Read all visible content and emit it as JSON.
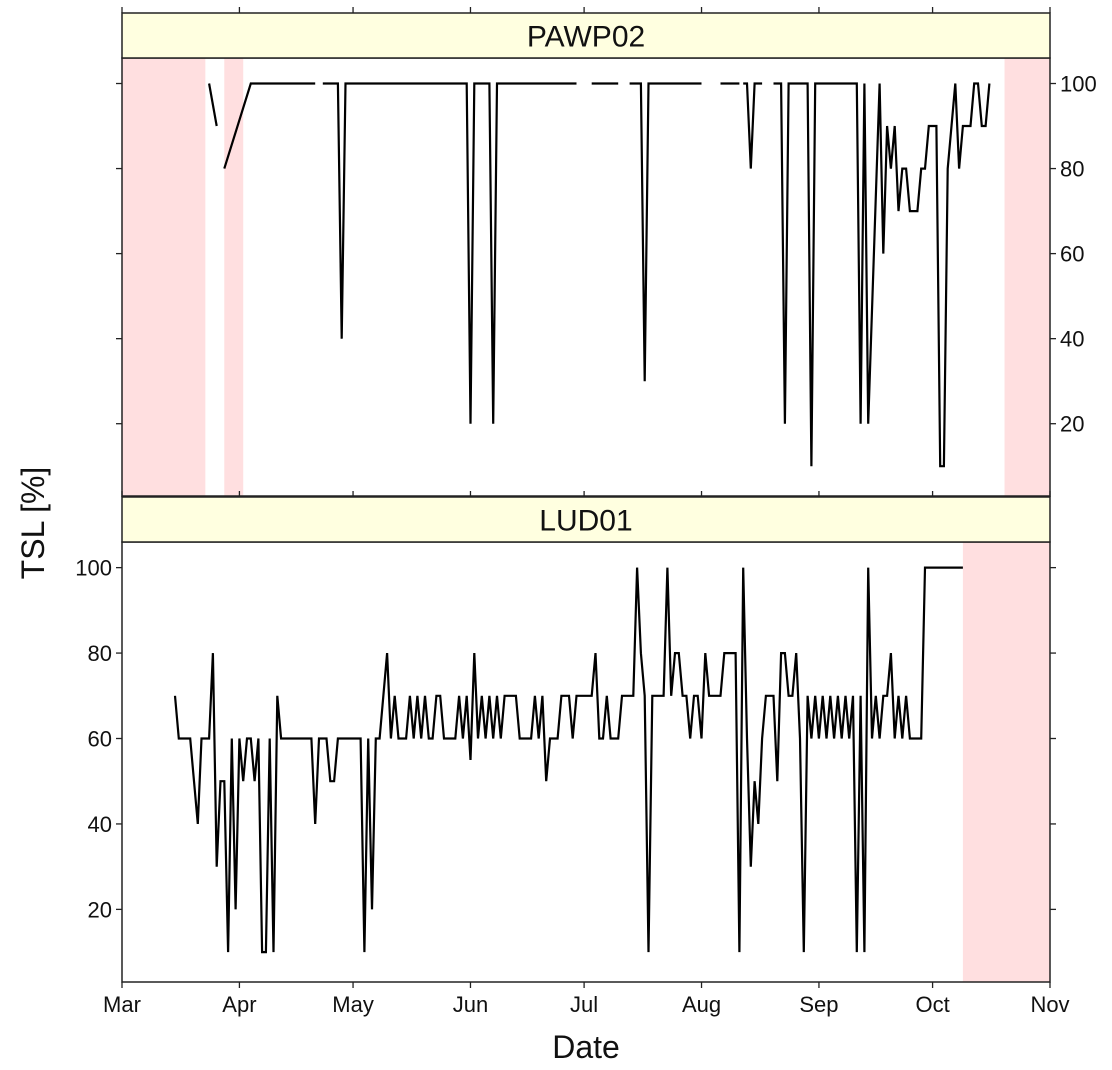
{
  "chart_data": {
    "type": "line",
    "xlabel": "Date",
    "ylabel": "TSL [%]",
    "x_axis": {
      "type": "date",
      "range": [
        "2016-03-01",
        "2016-11-01"
      ],
      "ticks": [
        {
          "date": "2016-03-01",
          "label": "Mar"
        },
        {
          "date": "2016-04-01",
          "label": "Apr"
        },
        {
          "date": "2016-05-01",
          "label": "May"
        },
        {
          "date": "2016-06-01",
          "label": "Jun"
        },
        {
          "date": "2016-07-01",
          "label": "Jul"
        },
        {
          "date": "2016-08-01",
          "label": "Aug"
        },
        {
          "date": "2016-09-01",
          "label": "Sep"
        },
        {
          "date": "2016-10-01",
          "label": "Oct"
        },
        {
          "date": "2016-11-01",
          "label": "Nov"
        }
      ]
    },
    "y_axis": {
      "range": [
        3,
        106
      ],
      "ticks": [
        20,
        40,
        60,
        80,
        100
      ]
    },
    "grid": false,
    "colors": {
      "line": "#000000",
      "shading": "#ffdfe0",
      "strip": "#ffffe0"
    },
    "panels": [
      {
        "label": "PAWP02",
        "y_axis_side": "right",
        "shaded_periods": [
          [
            "2016-03-01",
            "2016-03-23"
          ],
          [
            "2016-03-28",
            "2016-04-02"
          ],
          [
            "2016-10-20",
            "2016-11-01"
          ]
        ],
        "segments": [
          [
            [
              "2016-03-24",
              100
            ],
            [
              "2016-03-26",
              90
            ]
          ],
          [
            [
              "2016-03-28",
              80
            ],
            [
              "2016-04-04",
              100
            ],
            [
              "2016-04-21",
              100
            ]
          ],
          [
            [
              "2016-04-23",
              100
            ],
            [
              "2016-04-27",
              100
            ],
            [
              "2016-04-28",
              40
            ],
            [
              "2016-04-29",
              100
            ],
            [
              "2016-05-31",
              100
            ],
            [
              "2016-06-01",
              20
            ],
            [
              "2016-06-02",
              100
            ],
            [
              "2016-06-06",
              100
            ],
            [
              "2016-06-07",
              20
            ],
            [
              "2016-06-08",
              100
            ],
            [
              "2016-06-29",
              100
            ]
          ],
          [
            [
              "2016-07-03",
              100
            ],
            [
              "2016-07-10",
              100
            ]
          ],
          [
            [
              "2016-07-13",
              100
            ],
            [
              "2016-07-16",
              100
            ],
            [
              "2016-07-17",
              30
            ],
            [
              "2016-07-18",
              100
            ],
            [
              "2016-08-01",
              100
            ]
          ],
          [
            [
              "2016-08-06",
              100
            ],
            [
              "2016-08-11",
              100
            ]
          ],
          [
            [
              "2016-08-12",
              100
            ],
            [
              "2016-08-13",
              100
            ],
            [
              "2016-08-14",
              80
            ],
            [
              "2016-08-15",
              100
            ],
            [
              "2016-08-17",
              100
            ]
          ],
          [
            [
              "2016-08-20",
              100
            ],
            [
              "2016-08-22",
              100
            ],
            [
              "2016-08-23",
              20
            ],
            [
              "2016-08-24",
              100
            ],
            [
              "2016-08-29",
              100
            ],
            [
              "2016-08-30",
              10
            ],
            [
              "2016-08-31",
              100
            ],
            [
              "2016-09-11",
              100
            ],
            [
              "2016-09-12",
              20
            ],
            [
              "2016-09-13",
              100
            ],
            [
              "2016-09-14",
              20
            ],
            [
              "2016-09-17",
              100
            ],
            [
              "2016-09-18",
              60
            ],
            [
              "2016-09-19",
              90
            ],
            [
              "2016-09-20",
              80
            ],
            [
              "2016-09-21",
              90
            ],
            [
              "2016-09-22",
              70
            ],
            [
              "2016-09-23",
              80
            ],
            [
              "2016-09-24",
              80
            ],
            [
              "2016-09-25",
              70
            ],
            [
              "2016-09-27",
              70
            ],
            [
              "2016-09-28",
              80
            ],
            [
              "2016-09-29",
              80
            ],
            [
              "2016-09-30",
              90
            ],
            [
              "2016-10-02",
              90
            ],
            [
              "2016-10-03",
              10
            ],
            [
              "2016-10-04",
              10
            ],
            [
              "2016-10-05",
              80
            ],
            [
              "2016-10-07",
              100
            ],
            [
              "2016-10-08",
              80
            ],
            [
              "2016-10-09",
              90
            ],
            [
              "2016-10-11",
              90
            ],
            [
              "2016-10-12",
              100
            ],
            [
              "2016-10-13",
              100
            ],
            [
              "2016-10-14",
              90
            ],
            [
              "2016-10-15",
              90
            ],
            [
              "2016-10-16",
              100
            ]
          ]
        ]
      },
      {
        "label": "LUD01",
        "y_axis_side": "left",
        "shaded_periods": [
          [
            "2016-10-09",
            "2016-11-01"
          ]
        ],
        "segments": [
          [
            [
              "2016-03-15",
              70
            ],
            [
              "2016-03-16",
              60
            ],
            [
              "2016-03-19",
              60
            ],
            [
              "2016-03-21",
              40
            ],
            [
              "2016-03-22",
              60
            ],
            [
              "2016-03-24",
              60
            ],
            [
              "2016-03-25",
              80
            ],
            [
              "2016-03-26",
              30
            ],
            [
              "2016-03-27",
              50
            ],
            [
              "2016-03-28",
              50
            ],
            [
              "2016-03-29",
              10
            ],
            [
              "2016-03-30",
              60
            ],
            [
              "2016-03-31",
              20
            ],
            [
              "2016-04-01",
              60
            ],
            [
              "2016-04-02",
              50
            ],
            [
              "2016-04-03",
              60
            ],
            [
              "2016-04-04",
              60
            ],
            [
              "2016-04-05",
              50
            ],
            [
              "2016-04-06",
              60
            ],
            [
              "2016-04-07",
              10
            ],
            [
              "2016-04-08",
              10
            ],
            [
              "2016-04-09",
              60
            ],
            [
              "2016-04-10",
              10
            ],
            [
              "2016-04-11",
              70
            ],
            [
              "2016-04-12",
              60
            ],
            [
              "2016-04-20",
              60
            ],
            [
              "2016-04-21",
              40
            ],
            [
              "2016-04-22",
              60
            ],
            [
              "2016-04-24",
              60
            ],
            [
              "2016-04-25",
              50
            ],
            [
              "2016-04-26",
              50
            ],
            [
              "2016-04-27",
              60
            ],
            [
              "2016-05-03",
              60
            ],
            [
              "2016-05-04",
              10
            ],
            [
              "2016-05-05",
              60
            ],
            [
              "2016-05-06",
              20
            ],
            [
              "2016-05-07",
              60
            ],
            [
              "2016-05-08",
              60
            ],
            [
              "2016-05-10",
              80
            ],
            [
              "2016-05-11",
              60
            ],
            [
              "2016-05-12",
              70
            ],
            [
              "2016-05-13",
              60
            ],
            [
              "2016-05-15",
              60
            ],
            [
              "2016-05-16",
              70
            ],
            [
              "2016-05-17",
              60
            ],
            [
              "2016-05-18",
              70
            ],
            [
              "2016-05-19",
              60
            ],
            [
              "2016-05-20",
              70
            ],
            [
              "2016-05-21",
              60
            ],
            [
              "2016-05-22",
              60
            ],
            [
              "2016-05-23",
              70
            ],
            [
              "2016-05-24",
              70
            ],
            [
              "2016-05-25",
              60
            ],
            [
              "2016-05-28",
              60
            ],
            [
              "2016-05-29",
              70
            ],
            [
              "2016-05-30",
              60
            ],
            [
              "2016-05-31",
              70
            ],
            [
              "2016-06-01",
              55
            ],
            [
              "2016-06-02",
              80
            ],
            [
              "2016-06-03",
              60
            ],
            [
              "2016-06-04",
              70
            ],
            [
              "2016-06-05",
              60
            ],
            [
              "2016-06-06",
              70
            ],
            [
              "2016-06-07",
              60
            ],
            [
              "2016-06-08",
              70
            ],
            [
              "2016-06-09",
              60
            ],
            [
              "2016-06-10",
              70
            ],
            [
              "2016-06-13",
              70
            ],
            [
              "2016-06-14",
              60
            ],
            [
              "2016-06-17",
              60
            ],
            [
              "2016-06-18",
              70
            ],
            [
              "2016-06-19",
              60
            ],
            [
              "2016-06-20",
              70
            ],
            [
              "2016-06-21",
              50
            ],
            [
              "2016-06-22",
              60
            ],
            [
              "2016-06-24",
              60
            ],
            [
              "2016-06-25",
              70
            ],
            [
              "2016-06-27",
              70
            ],
            [
              "2016-06-28",
              60
            ],
            [
              "2016-06-29",
              70
            ],
            [
              "2016-07-03",
              70
            ],
            [
              "2016-07-04",
              80
            ],
            [
              "2016-07-05",
              60
            ],
            [
              "2016-07-06",
              60
            ],
            [
              "2016-07-07",
              70
            ],
            [
              "2016-07-08",
              60
            ],
            [
              "2016-07-10",
              60
            ],
            [
              "2016-07-11",
              70
            ],
            [
              "2016-07-14",
              70
            ],
            [
              "2016-07-15",
              100
            ],
            [
              "2016-07-16",
              80
            ],
            [
              "2016-07-17",
              70
            ],
            [
              "2016-07-18",
              10
            ],
            [
              "2016-07-19",
              70
            ],
            [
              "2016-07-22",
              70
            ],
            [
              "2016-07-23",
              100
            ],
            [
              "2016-07-24",
              70
            ],
            [
              "2016-07-25",
              80
            ],
            [
              "2016-07-26",
              80
            ],
            [
              "2016-07-27",
              70
            ],
            [
              "2016-07-28",
              70
            ],
            [
              "2016-07-29",
              60
            ],
            [
              "2016-07-30",
              70
            ],
            [
              "2016-07-31",
              70
            ],
            [
              "2016-08-01",
              60
            ],
            [
              "2016-08-02",
              80
            ],
            [
              "2016-08-03",
              70
            ],
            [
              "2016-08-06",
              70
            ],
            [
              "2016-08-07",
              80
            ],
            [
              "2016-08-10",
              80
            ],
            [
              "2016-08-11",
              10
            ],
            [
              "2016-08-12",
              100
            ],
            [
              "2016-08-13",
              60
            ],
            [
              "2016-08-14",
              30
            ],
            [
              "2016-08-15",
              50
            ],
            [
              "2016-08-16",
              40
            ],
            [
              "2016-08-17",
              60
            ],
            [
              "2016-08-18",
              70
            ],
            [
              "2016-08-20",
              70
            ],
            [
              "2016-08-21",
              50
            ],
            [
              "2016-08-22",
              80
            ],
            [
              "2016-08-23",
              80
            ],
            [
              "2016-08-24",
              70
            ],
            [
              "2016-08-25",
              70
            ],
            [
              "2016-08-26",
              80
            ],
            [
              "2016-08-27",
              60
            ],
            [
              "2016-08-28",
              10
            ],
            [
              "2016-08-29",
              70
            ],
            [
              "2016-08-30",
              60
            ],
            [
              "2016-08-31",
              70
            ],
            [
              "2016-09-01",
              60
            ],
            [
              "2016-09-02",
              70
            ],
            [
              "2016-09-03",
              60
            ],
            [
              "2016-09-04",
              70
            ],
            [
              "2016-09-05",
              60
            ],
            [
              "2016-09-06",
              70
            ],
            [
              "2016-09-07",
              60
            ],
            [
              "2016-09-08",
              70
            ],
            [
              "2016-09-09",
              60
            ],
            [
              "2016-09-10",
              70
            ],
            [
              "2016-09-11",
              10
            ],
            [
              "2016-09-12",
              70
            ],
            [
              "2016-09-13",
              10
            ],
            [
              "2016-09-14",
              100
            ],
            [
              "2016-09-15",
              60
            ],
            [
              "2016-09-16",
              70
            ],
            [
              "2016-09-17",
              60
            ],
            [
              "2016-09-18",
              70
            ],
            [
              "2016-09-19",
              70
            ],
            [
              "2016-09-20",
              80
            ],
            [
              "2016-09-21",
              60
            ],
            [
              "2016-09-22",
              70
            ],
            [
              "2016-09-23",
              60
            ],
            [
              "2016-09-24",
              70
            ],
            [
              "2016-09-25",
              60
            ],
            [
              "2016-09-28",
              60
            ],
            [
              "2016-09-29",
              100
            ],
            [
              "2016-10-09",
              100
            ]
          ]
        ]
      }
    ]
  }
}
